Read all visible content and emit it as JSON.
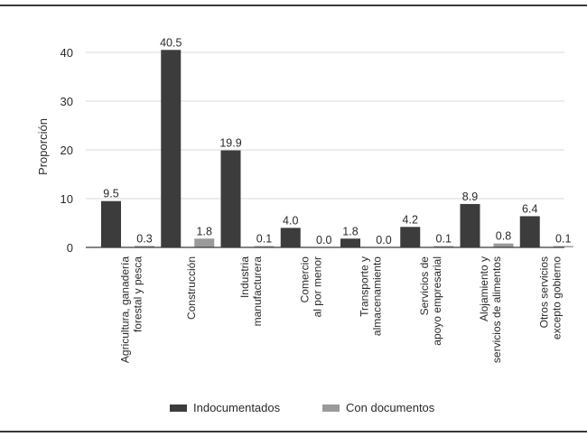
{
  "chart_data": {
    "type": "bar",
    "ylabel": "Proporción",
    "ylim": [
      0,
      45
    ],
    "yticks": [
      0,
      10,
      20,
      30,
      40
    ],
    "grid": true,
    "legend_position": "bottom",
    "categories": [
      [
        "Agricultura, ganadería",
        "forestal y pesca"
      ],
      [
        "Construcción"
      ],
      [
        "Industria",
        "manufacturera"
      ],
      [
        "Comercio",
        "al por menor"
      ],
      [
        "Transporte y",
        "almacenamiento"
      ],
      [
        "Servicios de",
        "apoyo empresarial"
      ],
      [
        "Alojamiento y",
        "servicios de alimentos"
      ],
      [
        "Otros servicios",
        "excepto gobierno"
      ]
    ],
    "series": [
      {
        "name": "Indocumentados",
        "color": "#3c3c3c",
        "values": [
          9.5,
          40.5,
          19.9,
          4.0,
          1.8,
          4.2,
          8.9,
          6.4
        ]
      },
      {
        "name": "Con documentos",
        "color": "#9a9a9a",
        "values": [
          0.3,
          1.8,
          0.1,
          0.0,
          0.0,
          0.1,
          0.8,
          0.1
        ]
      }
    ]
  }
}
